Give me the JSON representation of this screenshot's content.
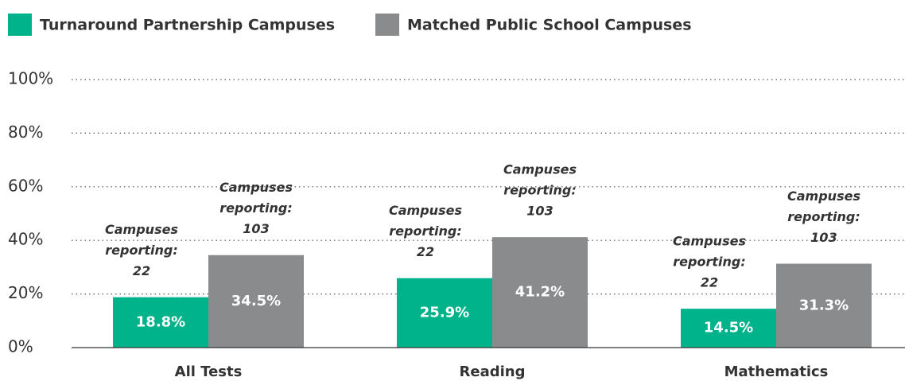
{
  "chart_data": {
    "type": "bar",
    "categories": [
      "All Tests",
      "Reading",
      "Mathematics"
    ],
    "series": [
      {
        "name": "Turnaround Partnership Campuses",
        "color": "#00b38a",
        "values": [
          18.8,
          25.9,
          14.5
        ],
        "value_labels": [
          "18.8%",
          "25.9%",
          "14.5%"
        ],
        "annotations": [
          [
            "Campuses",
            "reporting:",
            "22"
          ],
          [
            "Campuses",
            "reporting:",
            "22"
          ],
          [
            "Campuses",
            "reporting:",
            "22"
          ]
        ]
      },
      {
        "name": "Matched Public School Campuses",
        "color": "#898b8c",
        "values": [
          34.5,
          41.2,
          31.3
        ],
        "value_labels": [
          "34.5%",
          "41.2%",
          "31.3%"
        ],
        "annotations": [
          [
            "Campuses",
            "reporting:",
            "103"
          ],
          [
            "Campuses",
            "reporting:",
            "103"
          ],
          [
            "Campuses",
            "reporting:",
            "103"
          ]
        ]
      }
    ],
    "ylim": [
      0,
      100
    ],
    "yticks": [
      {
        "value": 0,
        "label": "0%"
      },
      {
        "value": 20,
        "label": "20%"
      },
      {
        "value": 40,
        "label": "40%"
      },
      {
        "value": 60,
        "label": "60%"
      },
      {
        "value": 80,
        "label": "80%"
      },
      {
        "value": 100,
        "label": "100%"
      }
    ],
    "grid": true,
    "legend": "top"
  }
}
